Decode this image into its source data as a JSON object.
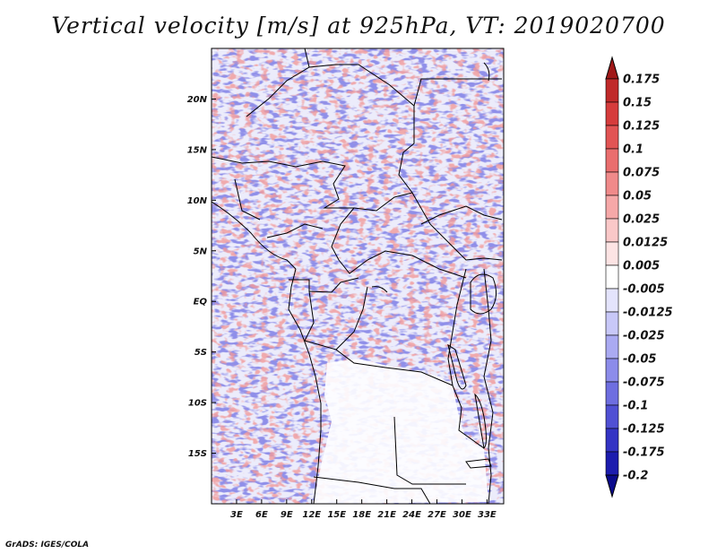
{
  "title": "Vertical velocity [m/s] at 925hPa, VT: 2019020700",
  "credit": "GrADS: IGES/COLA",
  "map": {
    "lon_range": [
      0,
      35
    ],
    "lat_range": [
      -20,
      25
    ],
    "lat_ticks": [
      "20N",
      "15N",
      "10N",
      "5N",
      "EQ",
      "5S",
      "10S",
      "15S"
    ],
    "lat_tick_values": [
      20,
      15,
      10,
      5,
      0,
      -5,
      -10,
      -15
    ],
    "lon_ticks": [
      "3E",
      "6E",
      "9E",
      "12E",
      "15E",
      "18E",
      "21E",
      "24E",
      "27E",
      "30E",
      "33E"
    ],
    "lon_tick_values": [
      3,
      6,
      9,
      12,
      15,
      18,
      21,
      24,
      27,
      30,
      33
    ]
  },
  "colorbar": {
    "labels": [
      "0.175",
      "0.15",
      "0.125",
      "0.1",
      "0.075",
      "0.05",
      "0.025",
      "0.0125",
      "0.005",
      "-0.005",
      "-0.0125",
      "-0.025",
      "-0.05",
      "-0.075",
      "-0.1",
      "-0.125",
      "-0.175",
      "-0.2"
    ],
    "colors": [
      "#a01818",
      "#c02a2a",
      "#d63c3c",
      "#e25454",
      "#ea6e6e",
      "#f08a8a",
      "#f6a8a8",
      "#fac8c8",
      "#fde4e4",
      "#ffffff",
      "#e4e4fc",
      "#c8c8f8",
      "#aaaaf2",
      "#8c8cea",
      "#6e6ee0",
      "#5050d4",
      "#3434c4",
      "#1c1cae",
      "#0a0a8c"
    ]
  }
}
